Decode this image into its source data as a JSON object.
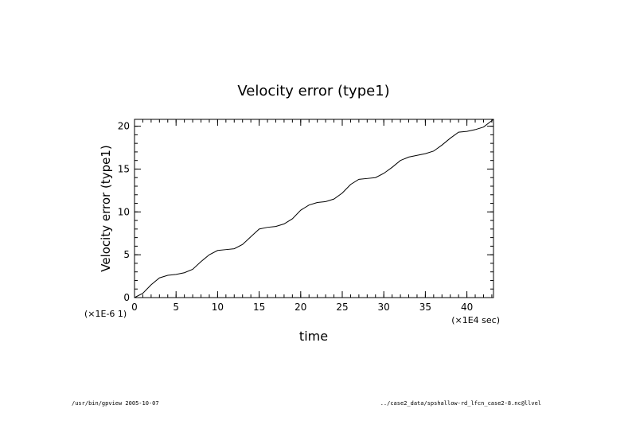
{
  "chart_data": {
    "type": "line",
    "title": "Velocity error (type1)",
    "xlabel": "time",
    "ylabel": "Velocity error (type1)",
    "x_scale_label": "(×1E4 sec)",
    "y_scale_label": "(×1E-6 1)",
    "xlim": [
      0,
      43.2
    ],
    "ylim": [
      0,
      20.8
    ],
    "xticks": [
      0,
      5,
      10,
      15,
      20,
      25,
      30,
      35,
      40
    ],
    "yticks": [
      0,
      5,
      10,
      15,
      20
    ],
    "grid": false,
    "series": [
      {
        "x": [
          0,
          1,
          2,
          3,
          4,
          5,
          6,
          7,
          8,
          9,
          10,
          11,
          12,
          13,
          14,
          15,
          16,
          17,
          18,
          19,
          20,
          21,
          22,
          23,
          24,
          25,
          26,
          27,
          28,
          29,
          30,
          31,
          32,
          33,
          34,
          35,
          36,
          37,
          38,
          39,
          40,
          41,
          42,
          43.2
        ],
        "y": [
          0,
          0.5,
          1.5,
          2.3,
          2.6,
          2.7,
          2.9,
          3.3,
          4.2,
          5.0,
          5.5,
          5.6,
          5.7,
          6.2,
          7.1,
          8.0,
          8.2,
          8.3,
          8.6,
          9.2,
          10.2,
          10.8,
          11.1,
          11.2,
          11.5,
          12.2,
          13.2,
          13.8,
          13.9,
          14.0,
          14.5,
          15.2,
          16.0,
          16.4,
          16.6,
          16.8,
          17.1,
          17.8,
          18.6,
          19.3,
          19.4,
          19.6,
          19.9,
          20.8
        ]
      }
    ]
  },
  "footer": {
    "left": "/usr/bin/gpview  2005-10-07",
    "right": "../case2_data/spshallow-rd_lfcn_case2-8.nc@llvel"
  }
}
